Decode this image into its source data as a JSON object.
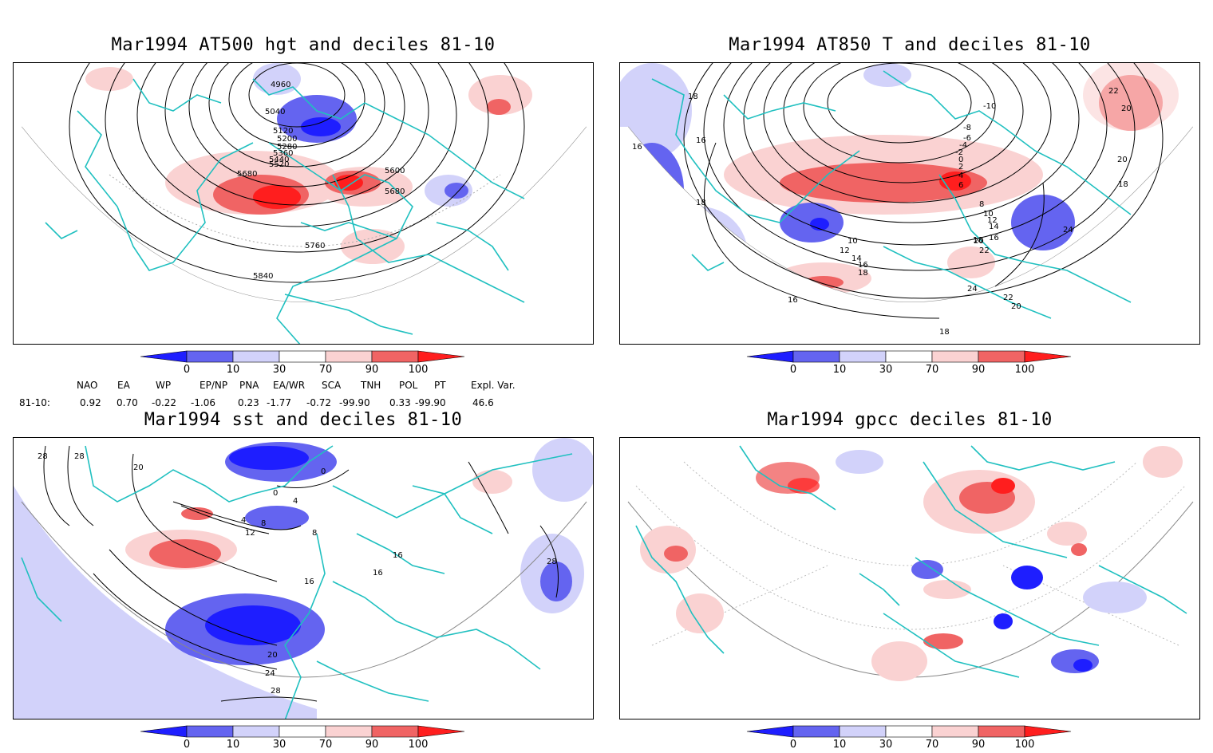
{
  "panels": [
    {
      "title": "Mar1994 AT500 hgt and deciles 81-10",
      "contour_labels": [
        "4960",
        "5040",
        "5120",
        "5200",
        "5280",
        "5360",
        "5440",
        "5520",
        "5600",
        "5680",
        "5680",
        "5760",
        "5840"
      ]
    },
    {
      "title": "Mar1994 AT850 T and deciles 81-10",
      "contour_labels": [
        "18",
        "16",
        "16",
        "18",
        "-10",
        "-8",
        "-6",
        "-4",
        "-2",
        "0",
        "2",
        "4",
        "6",
        "8",
        "10",
        "12",
        "14",
        "16",
        "18",
        "20",
        "20",
        "22",
        "22",
        "24",
        "24",
        "20",
        "22",
        "18",
        "16",
        "18",
        "20",
        "10",
        "12",
        "14",
        "16",
        "18"
      ]
    },
    {
      "title": "Mar1994 sst and deciles 81-10",
      "contour_labels": [
        "28",
        "28",
        "20",
        "0",
        "0",
        "4",
        "4",
        "8",
        "8",
        "12",
        "16",
        "16",
        "16",
        "20",
        "24",
        "28",
        "28"
      ]
    },
    {
      "title": "Mar1994 gpcc deciles 81-10",
      "contour_labels": []
    }
  ],
  "colorbar": {
    "labels": [
      "0",
      "10",
      "30",
      "70",
      "90",
      "100"
    ],
    "colors": [
      "#1e1eff",
      "#6464f0",
      "#d2d2fa",
      "#ffffff",
      "#fad2d2",
      "#f06464",
      "#ff1e1e"
    ]
  },
  "indices": {
    "headers": [
      "NAO",
      "EA",
      "WP",
      "EP/NP",
      "PNA",
      "EA/WR",
      "SCA",
      "TNH",
      "POL",
      "PT",
      "Expl. Var."
    ],
    "row_label": "81-10:",
    "values": [
      "0.92",
      "0.70",
      "-0.22",
      "-1.06",
      "0.23",
      "-1.77",
      "-0.72",
      "-99.90",
      "0.33",
      "-99.90",
      "46.6"
    ]
  },
  "colors": {
    "coast": "#20c0c0",
    "frame": "#000000",
    "grid": "#888888",
    "contour": "#000000"
  }
}
